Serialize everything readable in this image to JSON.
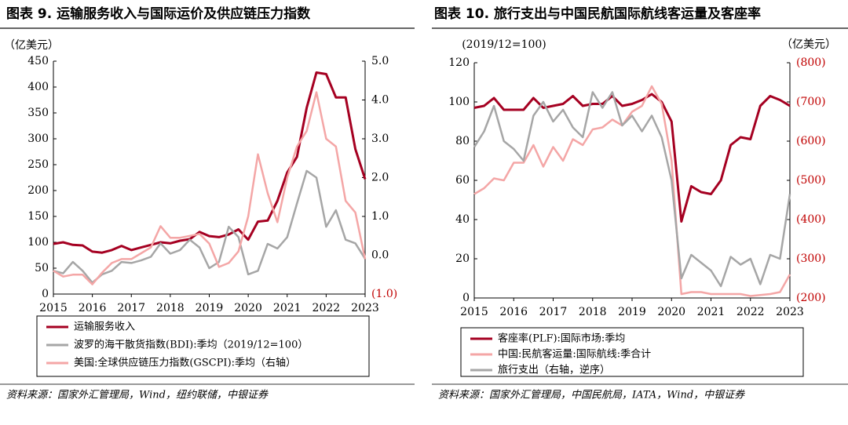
{
  "chart_data": [
    {
      "type": "line",
      "title": "图表 9. 运输服务收入与国际运价及供应链压力指数",
      "y_label": "（亿美元）",
      "source": "资料来源：国家外汇管理局，Wind，纽约联储，中银证券",
      "categories": [
        "2015",
        null,
        null,
        null,
        "2016",
        null,
        null,
        null,
        "2017",
        null,
        null,
        null,
        "2018",
        null,
        null,
        null,
        "2019",
        null,
        null,
        null,
        "2020",
        null,
        null,
        null,
        "2021",
        null,
        null,
        null,
        "2022",
        null,
        null,
        null,
        "2023"
      ],
      "ylim": [
        0,
        450
      ],
      "yticks": [
        0,
        50,
        100,
        150,
        200,
        250,
        300,
        350,
        400,
        450
      ],
      "y2lim": [
        -1,
        5
      ],
      "y2ticks": [
        {
          "value": -1,
          "label": "(1.0)"
        },
        {
          "value": 0,
          "label": "0.0"
        },
        {
          "value": 1,
          "label": "1.0"
        },
        {
          "value": 2,
          "label": "2.0"
        },
        {
          "value": 3,
          "label": "3.0"
        },
        {
          "value": 4,
          "label": "4.0"
        },
        {
          "value": 5,
          "label": "5.0"
        }
      ],
      "series": [
        {
          "name": "运输服务收入",
          "color": "#a50021",
          "values": [
            97,
            100,
            95,
            94,
            82,
            80,
            85,
            93,
            85,
            90,
            95,
            100,
            98,
            103,
            106,
            120,
            112,
            110,
            115,
            125,
            105,
            140,
            142,
            180,
            235,
            265,
            360,
            428,
            425,
            380,
            380,
            280,
            222
          ]
        },
        {
          "name": "波罗的海干散货指数(BDI):季均（2019/12=100）",
          "color": "#a6a6a6",
          "values": [
            45,
            40,
            62,
            45,
            22,
            38,
            45,
            62,
            60,
            65,
            72,
            98,
            78,
            85,
            105,
            90,
            50,
            62,
            130,
            110,
            38,
            45,
            97,
            88,
            110,
            175,
            238,
            225,
            130,
            162,
            105,
            98,
            68
          ]
        },
        {
          "name": "美国:全球供应链压力指数(GSCPI):季均（右轴）",
          "color": "#f4a6a6",
          "axis": "y2",
          "values": [
            -0.4,
            -0.55,
            -0.5,
            -0.5,
            -0.75,
            -0.45,
            -0.2,
            -0.1,
            -0.1,
            0.05,
            0.2,
            0.75,
            0.45,
            0.45,
            0.5,
            0.55,
            0.3,
            -0.3,
            -0.2,
            0.1,
            1.0,
            2.6,
            1.6,
            0.85,
            2.0,
            2.8,
            3.2,
            4.2,
            3.0,
            2.8,
            1.4,
            1.1,
            -0.1
          ]
        }
      ]
    },
    {
      "type": "line",
      "title": "图表 10. 旅行支出与中国民航国际航线客运量及客座率",
      "y_label": "(2019/12=100)",
      "y2_label": "（亿美元）",
      "source": "资料来源：国家外汇管理局，中国民航局，IATA，Wind，中银证券",
      "categories": [
        "2015",
        null,
        null,
        null,
        "2016",
        null,
        null,
        null,
        "2017",
        null,
        null,
        null,
        "2018",
        null,
        null,
        null,
        "2019",
        null,
        null,
        null,
        "2020",
        null,
        null,
        null,
        "2021",
        null,
        null,
        null,
        "2022",
        null,
        null,
        null,
        "2023"
      ],
      "ylim": [
        0,
        120
      ],
      "yticks": [
        0,
        20,
        40,
        60,
        80,
        100,
        120
      ],
      "y2lim": [
        -200,
        -800
      ],
      "y2ticks": [
        {
          "value": -800,
          "label": "(800)"
        },
        {
          "value": -700,
          "label": "(700)"
        },
        {
          "value": -600,
          "label": "(600)"
        },
        {
          "value": -500,
          "label": "(500)"
        },
        {
          "value": -400,
          "label": "(400)"
        },
        {
          "value": -300,
          "label": "(300)"
        },
        {
          "value": -200,
          "label": "(200)"
        }
      ],
      "series": [
        {
          "name": "客座率(PLF):国际市场:季均",
          "color": "#a50021",
          "values": [
            97,
            98,
            102,
            96,
            96,
            96,
            102,
            97,
            98,
            99,
            103,
            98,
            99,
            99,
            103,
            98,
            99,
            101,
            104,
            100,
            90,
            39,
            57,
            54,
            53,
            60,
            78,
            82,
            81,
            98,
            103,
            101,
            98
          ]
        },
        {
          "name": "中国:民航客运量:国际航线:季合计",
          "color": "#f4a6a6",
          "values": [
            53,
            56,
            61,
            60,
            69,
            69,
            78,
            67,
            77,
            70,
            81,
            78,
            86,
            87,
            91,
            88,
            95,
            98,
            108,
            99,
            70,
            2,
            3,
            3,
            2,
            2,
            2,
            2,
            1,
            1.5,
            2,
            3,
            12
          ]
        },
        {
          "name": "旅行支出（右轴，逆序）",
          "color": "#a6a6a6",
          "axis": "y2",
          "values": [
            -585,
            -625,
            -690,
            -600,
            -580,
            -550,
            -665,
            -700,
            -650,
            -680,
            -635,
            -610,
            -725,
            -685,
            -725,
            -640,
            -665,
            -625,
            -665,
            -610,
            -500,
            -250,
            -310,
            -290,
            -270,
            -230,
            -305,
            -285,
            -300,
            -235,
            -310,
            -300,
            -465
          ]
        }
      ]
    }
  ]
}
